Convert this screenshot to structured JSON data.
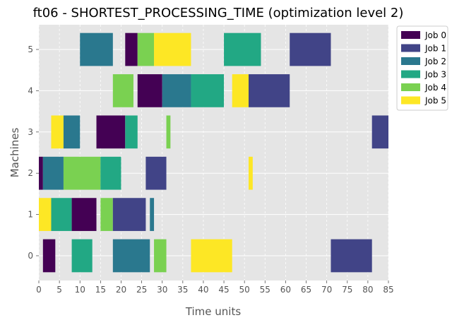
{
  "chart_data": {
    "type": "gantt",
    "title": "ft06 - SHORTEST_PROCESSING_TIME (optimization level 2)",
    "xlabel": "Time units",
    "ylabel": "Machines",
    "xlim": [
      0,
      85
    ],
    "ylim": [
      -0.6,
      5.6
    ],
    "xticks": [
      "0",
      "5",
      "10",
      "15",
      "20",
      "25",
      "30",
      "35",
      "40",
      "45",
      "50",
      "55",
      "60",
      "65",
      "70",
      "75",
      "80",
      "85"
    ],
    "yticks": [
      "0",
      "1",
      "2",
      "3",
      "4",
      "5"
    ],
    "grid": true,
    "legend_position": "upper-right-outside",
    "jobs": [
      {
        "name": "Job 0",
        "color": "#440154"
      },
      {
        "name": "Job 1",
        "color": "#414487"
      },
      {
        "name": "Job 2",
        "color": "#2a788e"
      },
      {
        "name": "Job 3",
        "color": "#22a884"
      },
      {
        "name": "Job 4",
        "color": "#7ad151"
      },
      {
        "name": "Job 5",
        "color": "#fde725"
      }
    ],
    "operations": [
      {
        "job": 0,
        "machine": 0,
        "start": 1,
        "end": 4
      },
      {
        "job": 3,
        "machine": 0,
        "start": 8,
        "end": 13
      },
      {
        "job": 2,
        "machine": 0,
        "start": 18,
        "end": 27
      },
      {
        "job": 4,
        "machine": 0,
        "start": 28,
        "end": 31
      },
      {
        "job": 5,
        "machine": 0,
        "start": 37,
        "end": 47
      },
      {
        "job": 1,
        "machine": 0,
        "start": 71,
        "end": 81
      },
      {
        "job": 5,
        "machine": 1,
        "start": 0,
        "end": 3
      },
      {
        "job": 3,
        "machine": 1,
        "start": 3,
        "end": 8
      },
      {
        "job": 0,
        "machine": 1,
        "start": 8,
        "end": 14
      },
      {
        "job": 4,
        "machine": 1,
        "start": 15,
        "end": 18
      },
      {
        "job": 1,
        "machine": 1,
        "start": 18,
        "end": 26
      },
      {
        "job": 2,
        "machine": 1,
        "start": 27,
        "end": 28
      },
      {
        "job": 0,
        "machine": 2,
        "start": 0,
        "end": 1
      },
      {
        "job": 2,
        "machine": 2,
        "start": 1,
        "end": 6
      },
      {
        "job": 4,
        "machine": 2,
        "start": 6,
        "end": 15
      },
      {
        "job": 3,
        "machine": 2,
        "start": 15,
        "end": 20
      },
      {
        "job": 1,
        "machine": 2,
        "start": 26,
        "end": 31
      },
      {
        "job": 5,
        "machine": 2,
        "start": 51,
        "end": 52
      },
      {
        "job": 5,
        "machine": 3,
        "start": 3,
        "end": 6
      },
      {
        "job": 2,
        "machine": 3,
        "start": 6,
        "end": 10
      },
      {
        "job": 0,
        "machine": 3,
        "start": 14,
        "end": 21
      },
      {
        "job": 3,
        "machine": 3,
        "start": 21,
        "end": 24
      },
      {
        "job": 4,
        "machine": 3,
        "start": 31,
        "end": 32
      },
      {
        "job": 1,
        "machine": 3,
        "start": 81,
        "end": 85
      },
      {
        "job": 4,
        "machine": 4,
        "start": 18,
        "end": 23
      },
      {
        "job": 0,
        "machine": 4,
        "start": 24,
        "end": 30
      },
      {
        "job": 2,
        "machine": 4,
        "start": 30,
        "end": 37
      },
      {
        "job": 3,
        "machine": 4,
        "start": 37,
        "end": 45
      },
      {
        "job": 5,
        "machine": 4,
        "start": 47,
        "end": 51
      },
      {
        "job": 1,
        "machine": 4,
        "start": 51,
        "end": 61
      },
      {
        "job": 2,
        "machine": 5,
        "start": 10,
        "end": 18
      },
      {
        "job": 0,
        "machine": 5,
        "start": 21,
        "end": 24
      },
      {
        "job": 4,
        "machine": 5,
        "start": 24,
        "end": 28
      },
      {
        "job": 5,
        "machine": 5,
        "start": 28,
        "end": 37
      },
      {
        "job": 3,
        "machine": 5,
        "start": 45,
        "end": 54
      },
      {
        "job": 1,
        "machine": 5,
        "start": 61,
        "end": 71
      }
    ]
  }
}
